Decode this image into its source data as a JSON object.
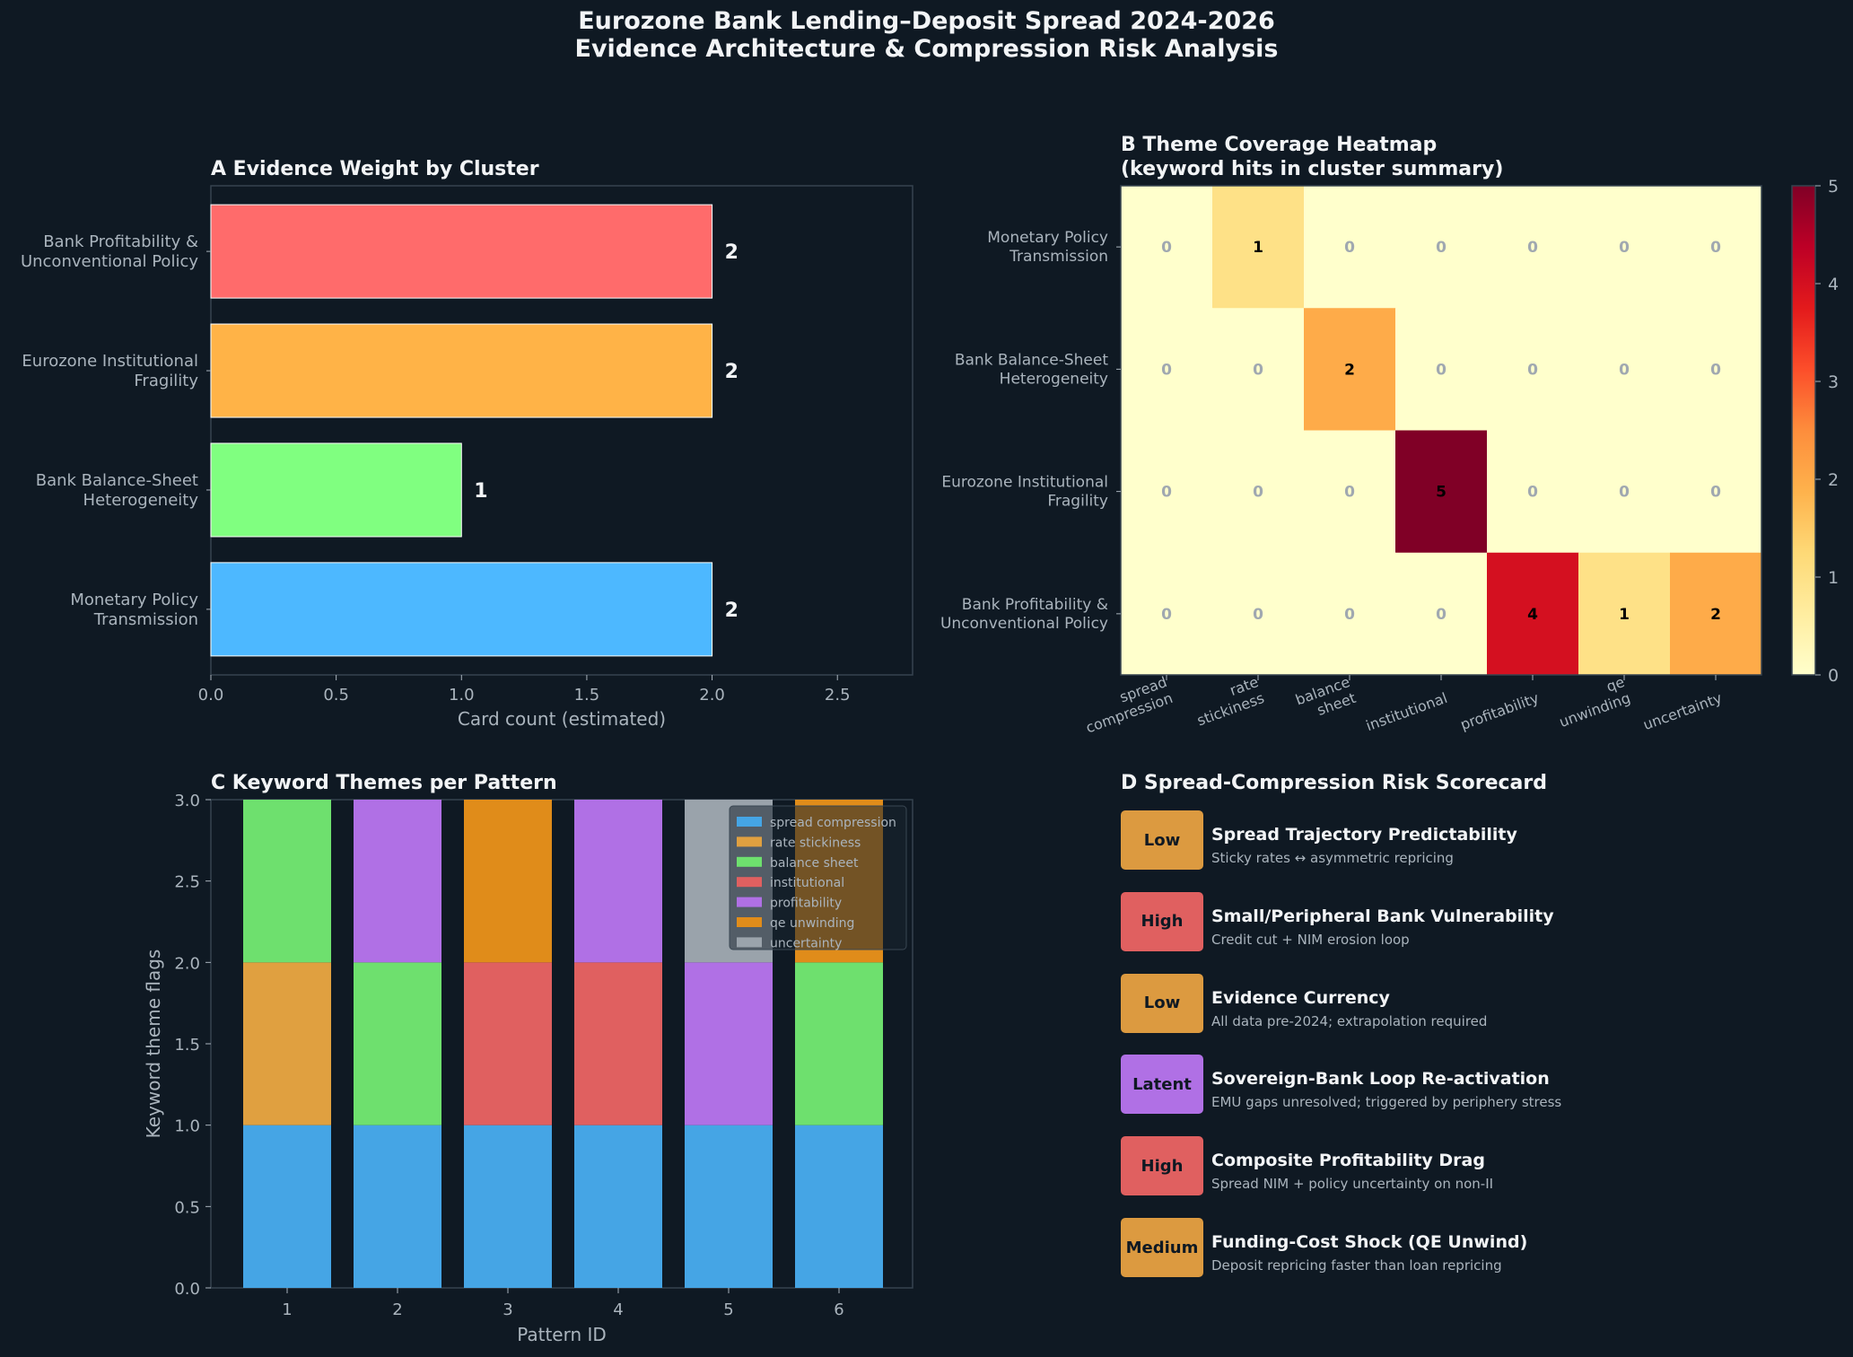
{
  "title_lines": [
    "Eurozone Bank Lending–Deposit Spread 2024-2026",
    "Evidence Architecture & Compression Risk Analysis"
  ],
  "chart_data": [
    {
      "panel": "A",
      "type": "bar",
      "orientation": "horizontal",
      "title": "A  Evidence Weight by Cluster",
      "xlabel": "Card count (estimated)",
      "ylabel": "",
      "categories": [
        "Monetary Policy\nTransmission",
        "Bank Balance-Sheet\nHeterogeneity",
        "Eurozone Institutional\nFragility",
        "Bank Profitability &\nUnconventional Policy"
      ],
      "values": [
        2,
        1,
        2,
        2
      ],
      "colors": [
        "#4db8ff",
        "#80ff80",
        "#ffb347",
        "#ff6b6b"
      ],
      "xlim": [
        0,
        2.8
      ],
      "xticks": [
        "0.0",
        "0.5",
        "1.0",
        "1.5",
        "2.0",
        "2.5"
      ],
      "grid": false
    },
    {
      "panel": "B",
      "type": "heatmap",
      "title": "B  Theme Coverage Heatmap\n(keyword hits in cluster summary)",
      "rows": [
        "Monetary Policy\nTransmission",
        "Bank Balance-Sheet\nHeterogeneity",
        "Eurozone Institutional\nFragility",
        "Bank Profitability &\nUnconventional Policy"
      ],
      "columns": [
        "spread\ncompression",
        "rate\nstickiness",
        "balance\nsheet",
        "institutional",
        "profitability",
        "qe\nunwinding",
        "uncertainty"
      ],
      "values": [
        [
          0,
          1,
          0,
          0,
          0,
          0,
          0
        ],
        [
          0,
          0,
          2,
          0,
          0,
          0,
          0
        ],
        [
          0,
          0,
          0,
          5,
          0,
          0,
          0
        ],
        [
          0,
          0,
          0,
          0,
          4,
          1,
          2
        ]
      ],
      "colorbar_ticks": [
        "0",
        "1",
        "2",
        "3",
        "4",
        "5"
      ],
      "vmin": 0,
      "vmax": 5,
      "colormap": "YlOrRd"
    },
    {
      "panel": "C",
      "type": "bar",
      "stacked": true,
      "title": "C  Keyword Themes per Pattern",
      "xlabel": "Pattern ID",
      "ylabel": "Keyword theme flags",
      "categories": [
        "1",
        "2",
        "3",
        "4",
        "5",
        "6"
      ],
      "ylim": [
        0,
        3
      ],
      "yticks": [
        "0.0",
        "0.5",
        "1.0",
        "1.5",
        "2.0",
        "2.5",
        "3.0"
      ],
      "series": [
        {
          "name": "spread compression",
          "color": "#45a5e5",
          "values": [
            1,
            1,
            1,
            1,
            1,
            1
          ]
        },
        {
          "name": "rate stickiness",
          "color": "#e0a040",
          "values": [
            1,
            0,
            0,
            0,
            0,
            0
          ]
        },
        {
          "name": "balance sheet",
          "color": "#6ee06e",
          "values": [
            1,
            1,
            0,
            0,
            0,
            1
          ]
        },
        {
          "name": "institutional",
          "color": "#e06060",
          "values": [
            0,
            0,
            1,
            1,
            0,
            0
          ]
        },
        {
          "name": "profitability",
          "color": "#b070e5",
          "values": [
            0,
            1,
            0,
            1,
            1,
            0
          ]
        },
        {
          "name": "qe unwinding",
          "color": "#e08c1a",
          "values": [
            0,
            0,
            1,
            0,
            0,
            1
          ]
        },
        {
          "name": "uncertainty",
          "color": "#9aa3ab",
          "values": [
            0,
            0,
            0,
            0,
            1,
            0
          ]
        }
      ],
      "legend_position": "top-right"
    }
  ],
  "scorecard": {
    "title": "D  Spread-Compression Risk Scorecard",
    "items": [
      {
        "badge": "Low",
        "color": "#dc9a40",
        "title": "Spread Trajectory Predictability",
        "subtitle": "Sticky rates ↔ asymmetric repricing"
      },
      {
        "badge": "High",
        "color": "#e06060",
        "title": "Small/Peripheral Bank Vulnerability",
        "subtitle": "Credit cut + NIM erosion loop"
      },
      {
        "badge": "Low",
        "color": "#dc9a40",
        "title": "Evidence Currency",
        "subtitle": "All data pre-2024; extrapolation required"
      },
      {
        "badge": "Latent",
        "color": "#b070e5",
        "title": "Sovereign-Bank Loop Re-activation",
        "subtitle": "EMU gaps unresolved; triggered by periphery stress"
      },
      {
        "badge": "High",
        "color": "#e06060",
        "title": "Composite Profitability Drag",
        "subtitle": "Spread NIM + policy uncertainty on non-II"
      },
      {
        "badge": "Medium",
        "color": "#dc9a40",
        "title": "Funding-Cost Shock (QE Unwind)",
        "subtitle": "Deposit repricing faster than loan repricing"
      }
    ]
  }
}
